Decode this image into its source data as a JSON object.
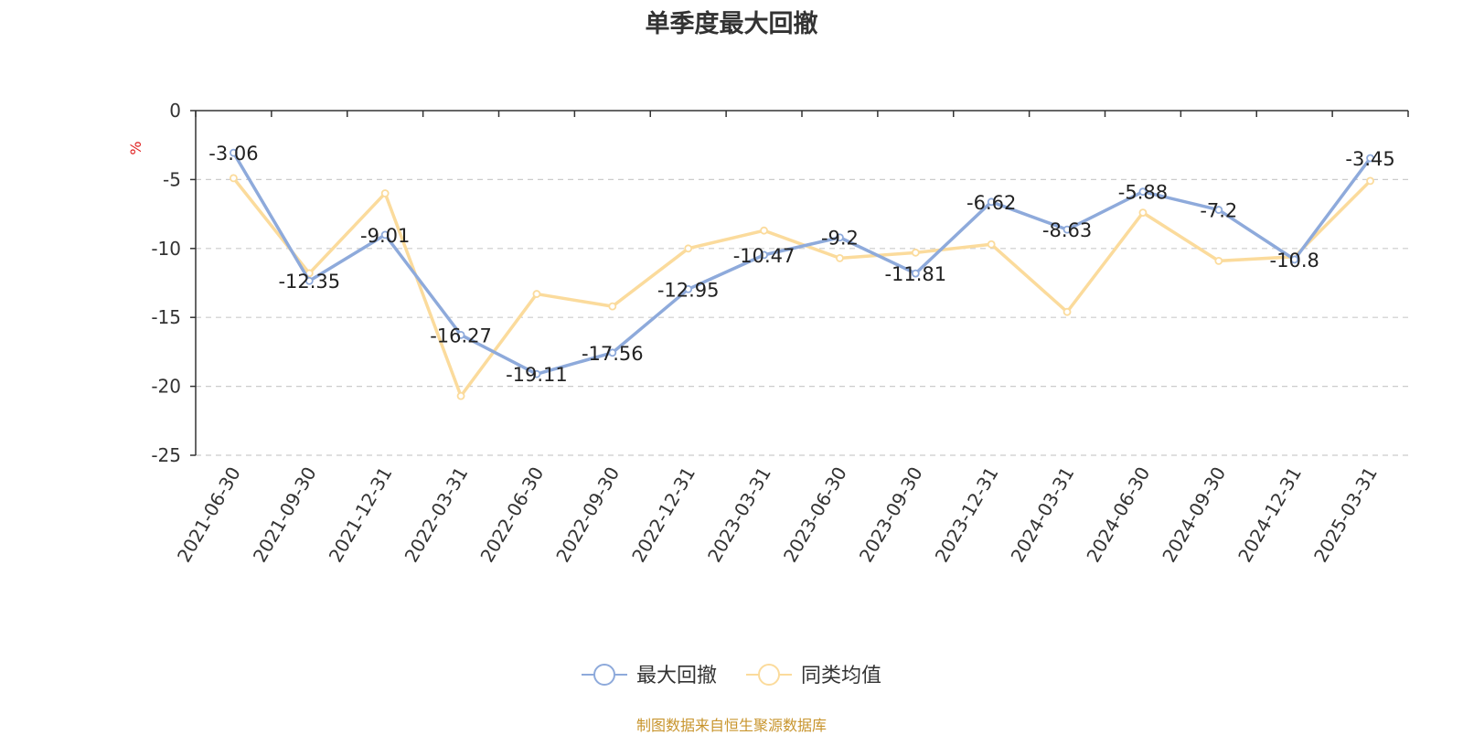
{
  "chart_data": {
    "type": "line",
    "title": "单季度最大回撤",
    "ylabel": "%",
    "ylim": [
      -25,
      0
    ],
    "yticks": [
      0,
      -5,
      -10,
      -15,
      -20,
      -25
    ],
    "grid": true,
    "legend_position": "bottom",
    "categories": [
      "2021-06-30",
      "2021-09-30",
      "2021-12-31",
      "2022-03-31",
      "2022-06-30",
      "2022-09-30",
      "2022-12-31",
      "2023-03-31",
      "2023-06-30",
      "2023-09-30",
      "2023-12-31",
      "2024-03-31",
      "2024-06-30",
      "2024-09-30",
      "2024-12-31",
      "2025-03-31"
    ],
    "series": [
      {
        "name": "最大回撤",
        "color": "#8eaadb",
        "values": [
          -3.06,
          -12.35,
          -9.01,
          -16.27,
          -19.11,
          -17.56,
          -12.95,
          -10.47,
          -9.2,
          -11.81,
          -6.62,
          -8.63,
          -5.88,
          -7.2,
          -10.8,
          -3.45
        ],
        "labels": [
          "-3.06",
          "-12.35",
          "-9.01",
          "-16.27",
          "-19.11",
          "-17.56",
          "-12.95",
          "-10.47",
          "-9.2",
          "-11.81",
          "-6.62",
          "-8.63",
          "-5.88",
          "-7.2",
          "-10.8",
          "-3.45"
        ]
      },
      {
        "name": "同类均值",
        "color": "#fbdb9c",
        "values": [
          -4.9,
          -11.8,
          -6.0,
          -20.7,
          -13.3,
          -14.2,
          -10.0,
          -8.7,
          -10.7,
          -10.3,
          -9.7,
          -14.6,
          -7.4,
          -10.9,
          -10.6,
          -5.1
        ]
      }
    ]
  },
  "footer": "制图数据来自恒生聚源数据库"
}
